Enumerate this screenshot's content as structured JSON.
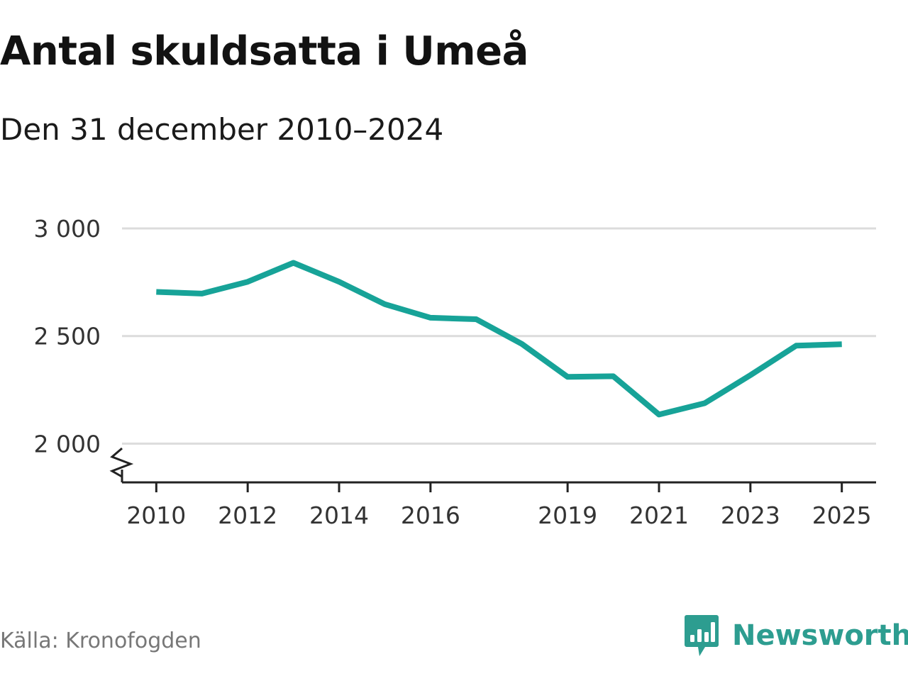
{
  "chart_data": {
    "type": "line",
    "title": "Antal skuldsatta i Umeå",
    "subtitle": "Den 31 december 2010–2024",
    "xlabel": "",
    "ylabel": "",
    "x": [
      2010,
      2011,
      2012,
      2013,
      2014,
      2015,
      2016,
      2017,
      2018,
      2019,
      2020,
      2021,
      2022,
      2023,
      2024,
      2025
    ],
    "values": [
      2705,
      2697,
      2752,
      2840,
      2752,
      2648,
      2585,
      2578,
      2463,
      2310,
      2313,
      2135,
      2188,
      2318,
      2455,
      2462
    ],
    "ylim": [
      1820,
      3000
    ],
    "xlim": [
      2009.25,
      2025.75
    ],
    "y_ticks": [
      {
        "value": 2000,
        "label": "2 000"
      },
      {
        "value": 2500,
        "label": "2 500"
      },
      {
        "value": 3000,
        "label": "3 000"
      }
    ],
    "x_ticks": [
      {
        "value": 2010,
        "label": "2010"
      },
      {
        "value": 2012,
        "label": "2012"
      },
      {
        "value": 2014,
        "label": "2014"
      },
      {
        "value": 2016,
        "label": "2016"
      },
      {
        "value": 2019,
        "label": "2019"
      },
      {
        "value": 2021,
        "label": "2021"
      },
      {
        "value": 2023,
        "label": "2023"
      },
      {
        "value": 2025,
        "label": "2025"
      }
    ],
    "axis_break": true,
    "grid": true,
    "line_color": "#17a398",
    "grid_color": "#dcdcdc",
    "axis_color": "#222222"
  },
  "source": "Källa: Kronofogden",
  "brand": {
    "name": "Newsworthy",
    "icon": "newsworthy-logo-icon",
    "color": "#2d9d90"
  }
}
